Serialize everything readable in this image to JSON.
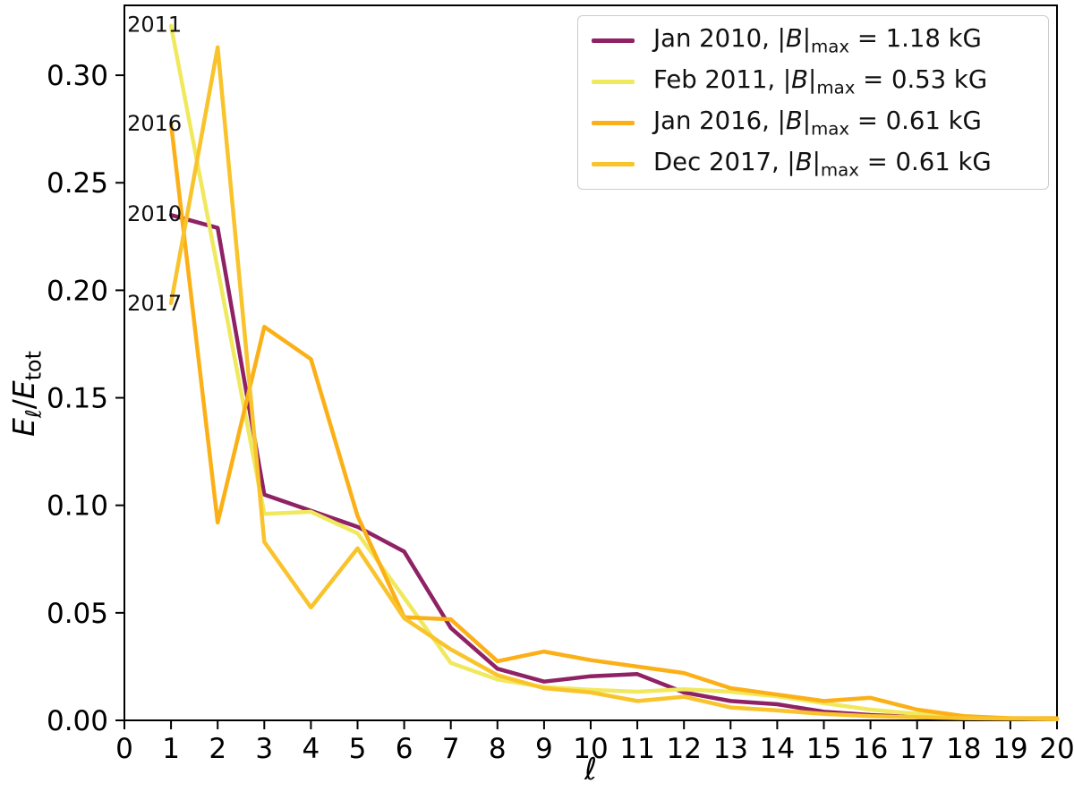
{
  "chart_data": {
    "type": "line",
    "title": "",
    "xlabel": "ℓ",
    "ylabel": "E_l/E_tot",
    "ylabel_parts": {
      "e1": "E",
      "sub1": "ℓ",
      "slash": "/",
      "e2": "E",
      "sub2": "tot"
    },
    "xlim": [
      0,
      20
    ],
    "ylim": [
      0,
      0.3325
    ],
    "grid": false,
    "legend_position": "upper right",
    "x": [
      1,
      2,
      3,
      4,
      5,
      6,
      7,
      8,
      9,
      10,
      11,
      12,
      13,
      14,
      15,
      16,
      17,
      18,
      19,
      20
    ],
    "x_ticks": {
      "values": [
        0,
        1,
        2,
        3,
        4,
        5,
        6,
        7,
        8,
        9,
        10,
        11,
        12,
        13,
        14,
        15,
        16,
        17,
        18,
        19,
        20
      ],
      "labels": [
        "0",
        "1",
        "2",
        "3",
        "4",
        "5",
        "6",
        "7",
        "8",
        "9",
        "10",
        "11",
        "12",
        "13",
        "14",
        "15",
        "16",
        "17",
        "18",
        "19",
        "20"
      ]
    },
    "y_ticks": {
      "values": [
        0.0,
        0.05,
        0.1,
        0.15,
        0.2,
        0.25,
        0.3
      ],
      "labels": [
        "0.00",
        "0.05",
        "0.10",
        "0.15",
        "0.20",
        "0.25",
        "0.30"
      ]
    },
    "series": [
      {
        "name": "Jan 2010",
        "bmax": "1.18",
        "color": "#8e2265",
        "values": [
          0.235,
          0.229,
          0.105,
          0.0975,
          0.09,
          0.0785,
          0.043,
          0.024,
          0.018,
          0.0205,
          0.0215,
          0.013,
          0.009,
          0.0075,
          0.004,
          0.0025,
          0.0015,
          0.001,
          0.0008,
          0.0005
        ]
      },
      {
        "name": "Feb 2011",
        "bmax": "0.53",
        "color": "#f0e95e",
        "values": [
          0.323,
          0.21,
          0.096,
          0.097,
          0.087,
          0.057,
          0.0267,
          0.019,
          0.0155,
          0.0142,
          0.0133,
          0.0145,
          0.0133,
          0.0112,
          0.008,
          0.005,
          0.003,
          0.0015,
          0.001,
          0.0008
        ]
      },
      {
        "name": "Jan 2016",
        "bmax": "0.61",
        "color": "#fbb018",
        "values": [
          0.2775,
          0.092,
          0.183,
          0.168,
          0.095,
          0.048,
          0.047,
          0.0275,
          0.032,
          0.028,
          0.025,
          0.022,
          0.015,
          0.012,
          0.009,
          0.0105,
          0.005,
          0.002,
          0.001,
          0.001
        ]
      },
      {
        "name": "Dec 2017",
        "bmax": "0.61",
        "color": "#f9c32b",
        "values": [
          0.194,
          0.313,
          0.083,
          0.0525,
          0.08,
          0.0475,
          0.033,
          0.021,
          0.015,
          0.013,
          0.009,
          0.011,
          0.006,
          0.0046,
          0.003,
          0.002,
          0.0015,
          0.001,
          0.0008,
          0.0005
        ]
      }
    ],
    "annotations": [
      {
        "text": "2011",
        "lx": 0.06,
        "value": 0.3235
      },
      {
        "text": "2016",
        "lx": 0.06,
        "value": 0.2775
      },
      {
        "text": "2010",
        "lx": 0.06,
        "value": 0.2355
      },
      {
        "text": "2017",
        "lx": 0.06,
        "value": 0.194
      }
    ]
  },
  "legend": {
    "comma": ", ",
    "bar": "|",
    "b_symbol": "B",
    "subscript": "max",
    "equals": " = ",
    "unit": " kG"
  },
  "colors": {
    "frame": "#000000",
    "tick_text": "#000000",
    "annotation_text": "#111111",
    "legend_border": "#cccccc",
    "legend_bg": "#ffffff"
  }
}
